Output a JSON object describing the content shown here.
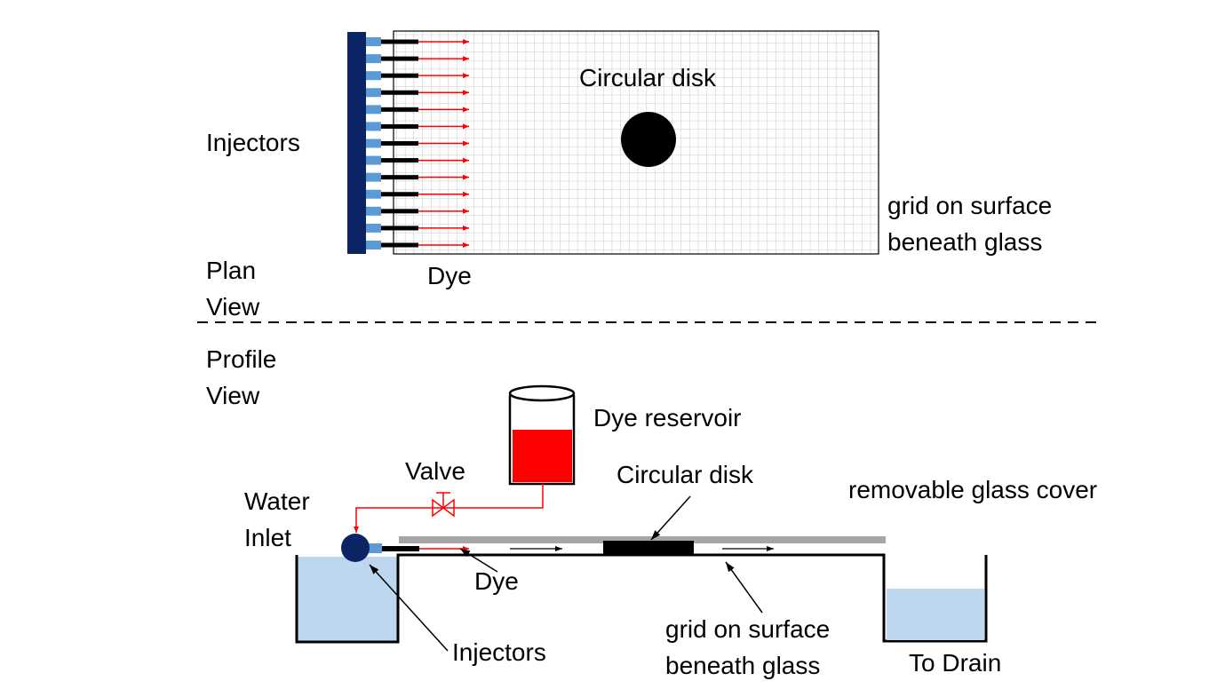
{
  "plan_view": {
    "injectors_label": "Injectors",
    "circular_disk_label": "Circular disk",
    "grid_label_line1": "grid on surface",
    "grid_label_line2": "beneath glass",
    "dye_label": "Dye",
    "view_label_line1": "Plan",
    "view_label_line2": "View",
    "injector_count": 13
  },
  "profile_view": {
    "view_label_line1": "Profile",
    "view_label_line2": "View",
    "dye_reservoir_label": "Dye reservoir",
    "valve_label": "Valve",
    "circular_disk_label": "Circular disk",
    "glass_cover_label": "removable glass cover",
    "water_inlet_line1": "Water",
    "water_inlet_line2": "Inlet",
    "dye_label": "Dye",
    "injectors_label": "Injectors",
    "grid_label_line1": "grid on surface",
    "grid_label_line2": "beneath glass",
    "drain_label": "To Drain"
  },
  "colors": {
    "manifold": "#0b2463",
    "nozzle": "#5b9bd5",
    "dye": "#ff0000",
    "water": "#bdd7ee",
    "glass": "#a6a6a6",
    "grid": "#c8c8c8"
  }
}
